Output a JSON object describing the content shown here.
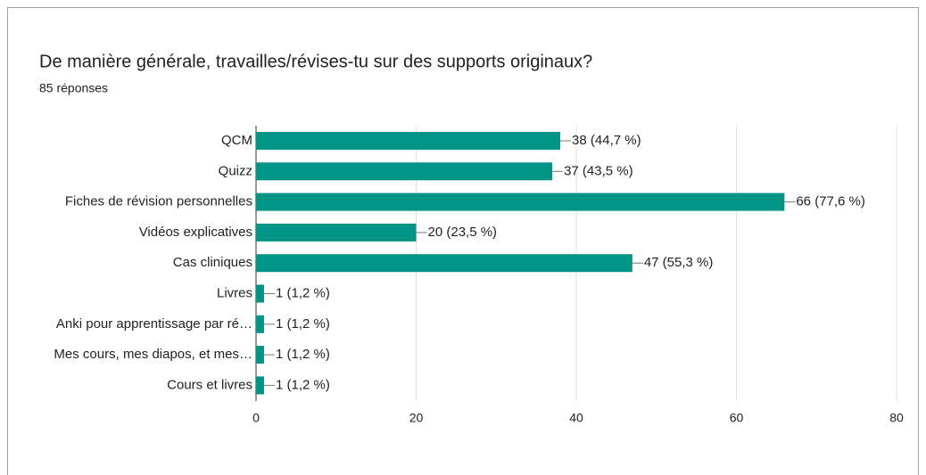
{
  "chart_data": {
    "type": "bar",
    "orientation": "horizontal",
    "title": "De manière générale, travailles/révises-tu sur des supports originaux?",
    "subtitle": "85 réponses",
    "categories": [
      "QCM",
      "Quizz",
      "Fiches de révision personnelles",
      "Vidéos explicatives",
      "Cas cliniques",
      "Livres",
      "Anki pour apprentissage par ré…",
      "Mes cours, mes diapos, et mes…",
      "Cours et livres"
    ],
    "values": [
      38,
      37,
      66,
      20,
      47,
      1,
      1,
      1,
      1
    ],
    "value_labels": [
      "38 (44,7 %)",
      "37 (43,5 %)",
      "66 (77,6 %)",
      "20 (23,5 %)",
      "47 (55,3 %)",
      "1 (1,2 %)",
      "1 (1,2 %)",
      "1 (1,2 %)",
      "1 (1,2 %)"
    ],
    "color": "#009587",
    "xlim": [
      0,
      80
    ],
    "xticks": [
      0,
      20,
      40,
      60,
      80
    ],
    "grid": true
  }
}
